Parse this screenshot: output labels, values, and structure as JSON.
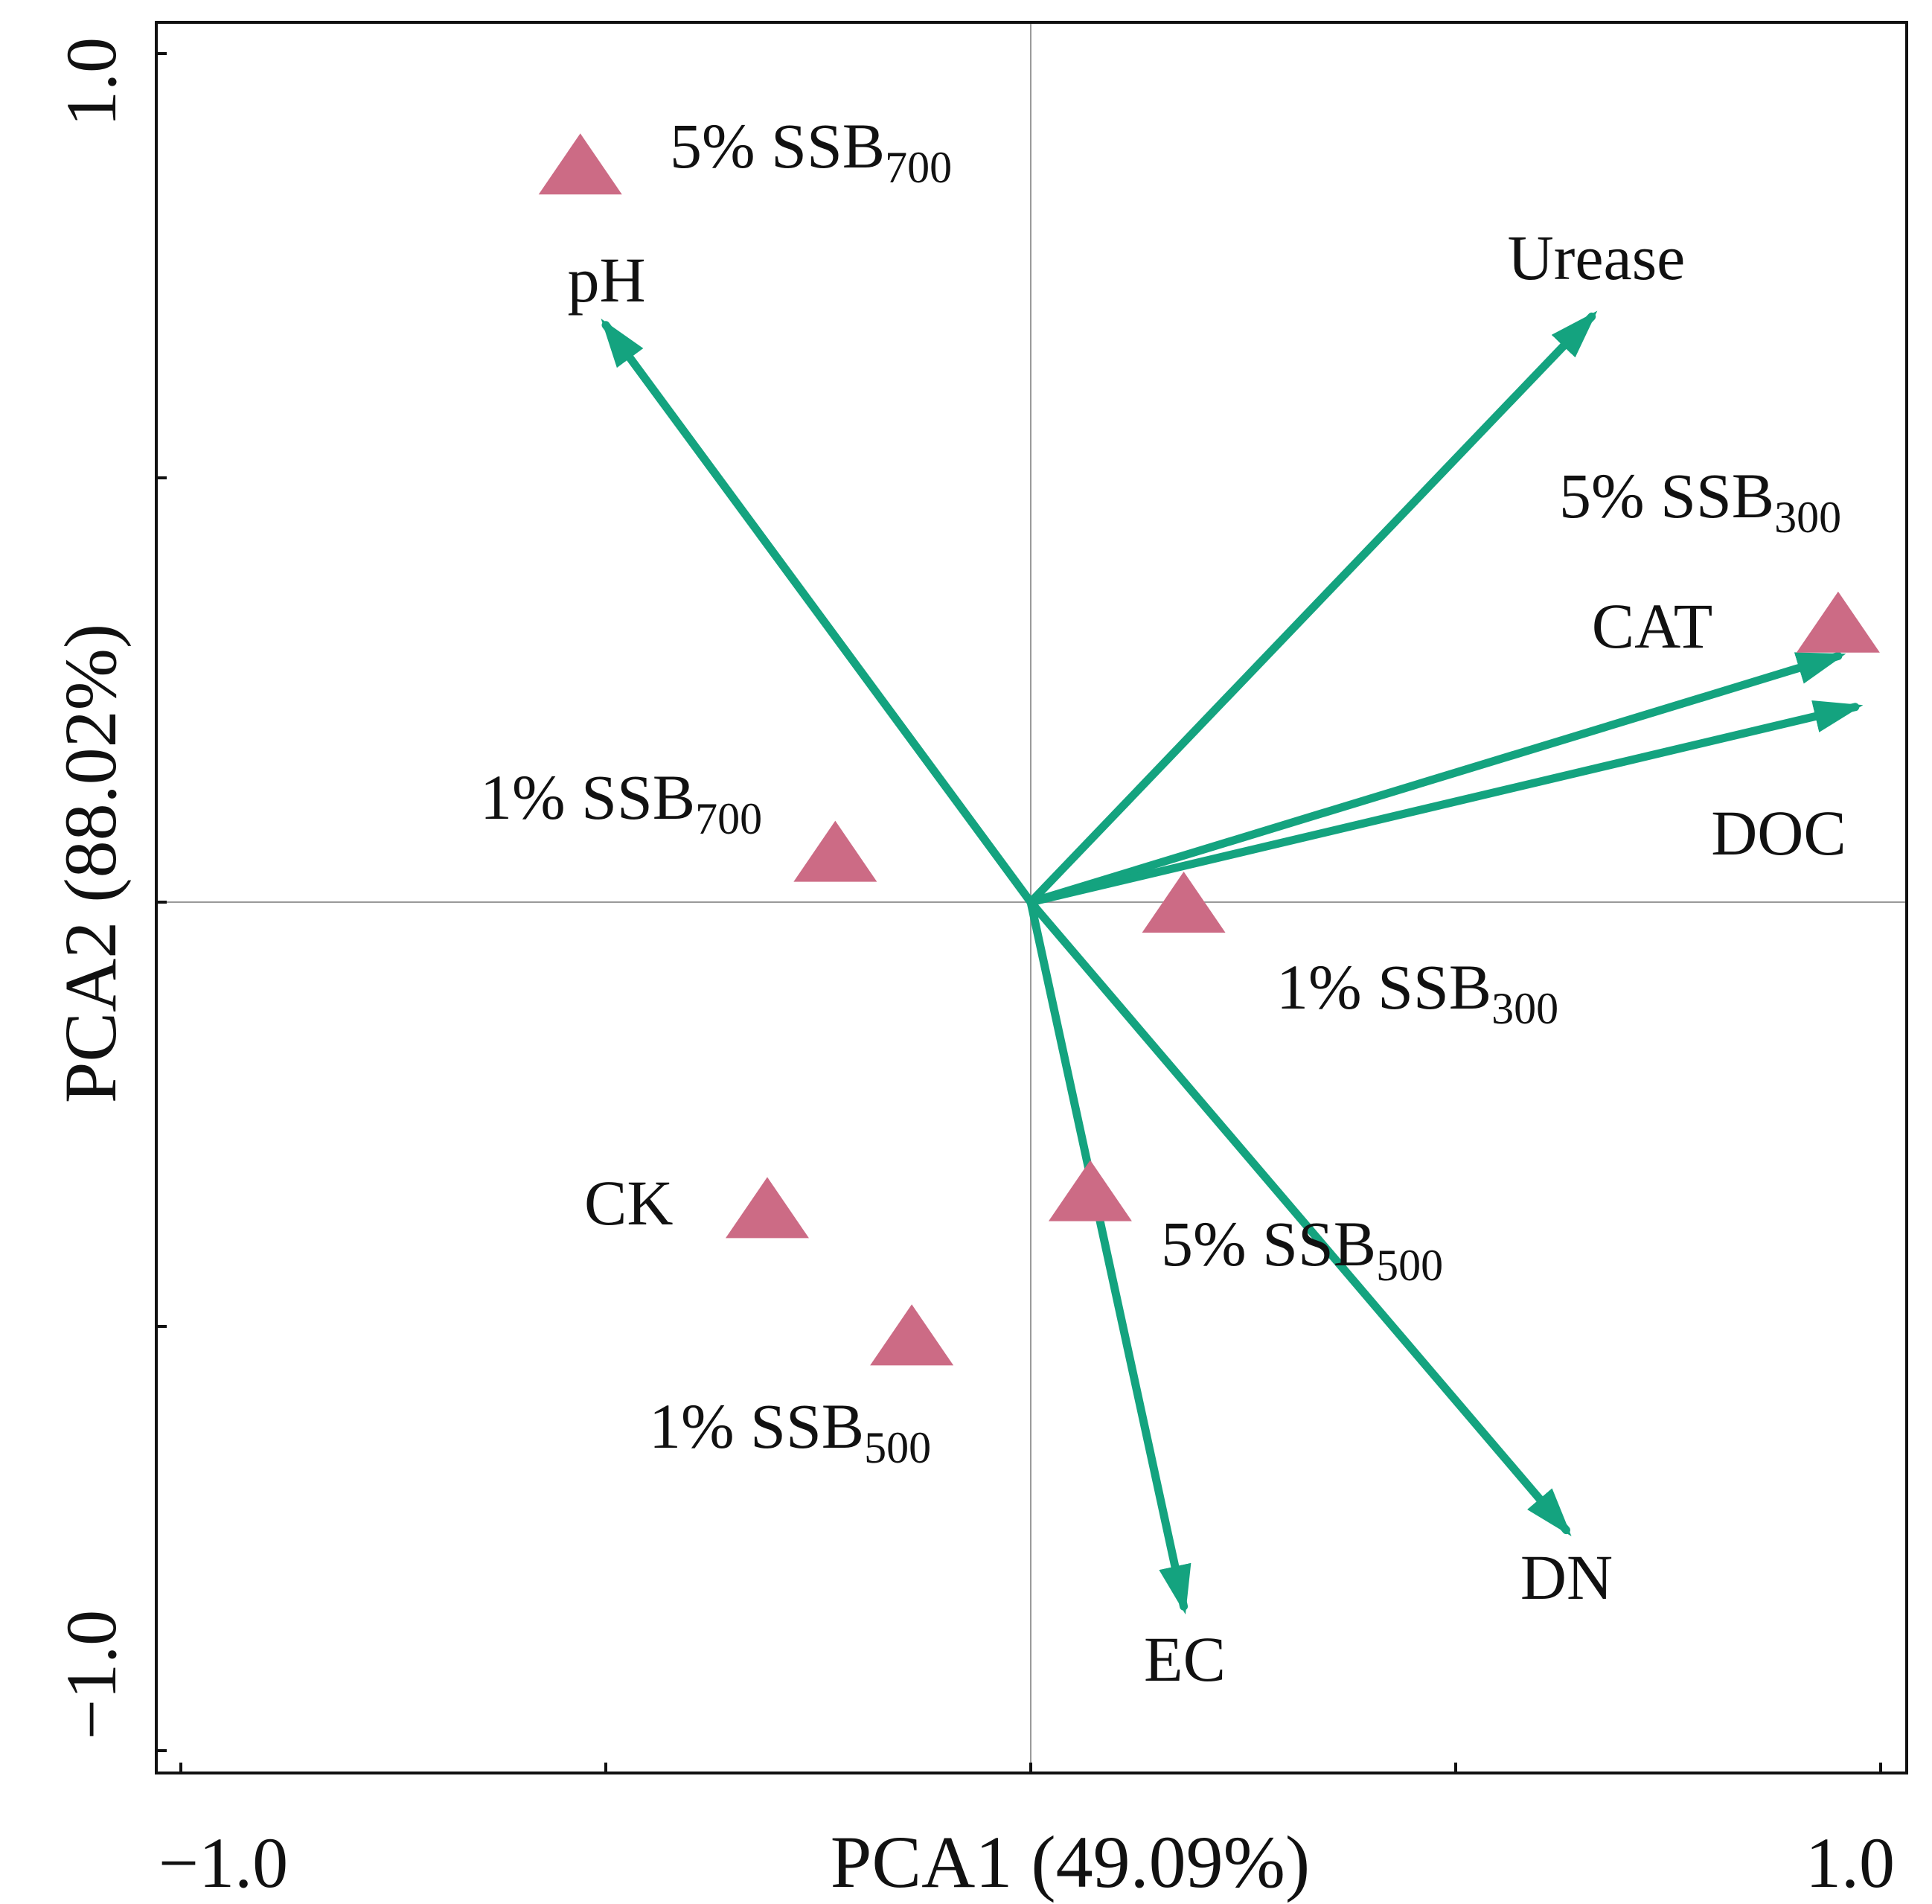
{
  "chart_data": {
    "type": "scatter",
    "subtype": "pca-biplot",
    "xlabel": "PCA1 (49.09%)",
    "ylabel": "PCA2 (88.02%)",
    "xlim": [
      -1.0,
      1.0
    ],
    "ylim": [
      -1.0,
      1.0
    ],
    "x_tick_labels": [
      "−1.0",
      "1.0"
    ],
    "y_tick_labels": [
      "−1.0",
      "1.0"
    ],
    "zero_lines": true,
    "colors": {
      "samples": "#cc6b85",
      "vectors": "#14a37f",
      "axes": "#111111",
      "zero_lines": "#9a9a9a"
    },
    "vectors": [
      {
        "name": "pH",
        "x": -0.5,
        "y": 0.68
      },
      {
        "name": "Urease",
        "x": 0.66,
        "y": 0.69
      },
      {
        "name": "CAT",
        "x": 0.95,
        "y": 0.29
      },
      {
        "name": "DOC",
        "x": 0.97,
        "y": 0.23
      },
      {
        "name": "DN",
        "x": 0.63,
        "y": -0.74
      },
      {
        "name": "EC",
        "x": 0.18,
        "y": -0.83
      }
    ],
    "samples": [
      {
        "name": "5% SSB",
        "sub": "700",
        "x": -0.53,
        "y": 0.87
      },
      {
        "name": "1% SSB",
        "sub": "700",
        "x": -0.23,
        "y": 0.06
      },
      {
        "name": "5% SSB",
        "sub": "300",
        "x": 0.95,
        "y": 0.33
      },
      {
        "name": "1% SSB",
        "sub": "300",
        "x": 0.18,
        "y": 0.0
      },
      {
        "name": "CK",
        "sub": "",
        "x": -0.31,
        "y": -0.36
      },
      {
        "name": "5% SSB",
        "sub": "500",
        "x": 0.07,
        "y": -0.34
      },
      {
        "name": "1% SSB",
        "sub": "500",
        "x": -0.14,
        "y": -0.51
      }
    ]
  }
}
